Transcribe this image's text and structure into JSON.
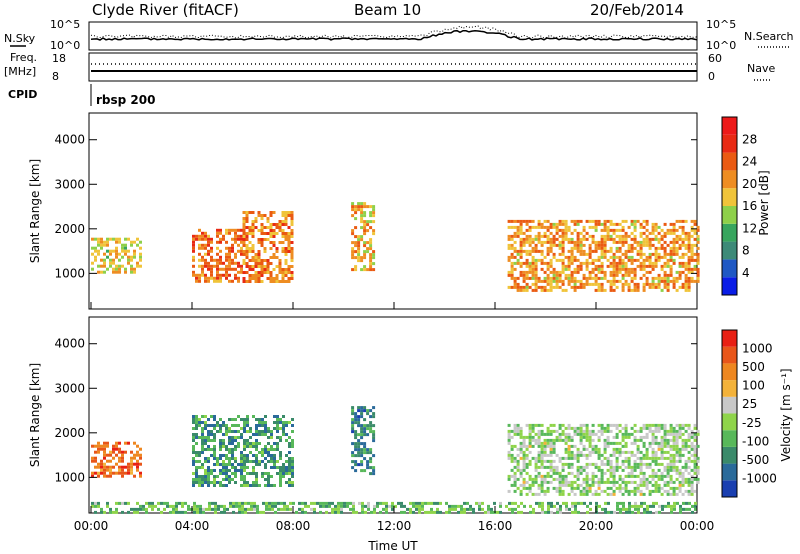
{
  "header": {
    "title": "Clyde River (fitACF)",
    "beam": "Beam 10",
    "date": "20/Feb/2014"
  },
  "summary": {
    "nsky_label": "N.Sky",
    "nsky_ticks": [
      "10^5",
      "10^0"
    ],
    "nsearch_label": "N.Search",
    "nsearch_ticks": [
      "10^5",
      "10^0"
    ],
    "freq_label": "Freq.",
    "freq_unit": "[MHz]",
    "freq_ticks": [
      "18",
      "8"
    ],
    "nave_label": "Nave",
    "nave_ticks": [
      "60",
      "0"
    ],
    "cpid_label": "CPID",
    "cpid_value": "rbsp 200"
  },
  "chart_data": [
    {
      "type": "heatmap",
      "parameter": "Power",
      "ylabel": "Slant Range [km]",
      "y_ticks": [
        "1000",
        "2000",
        "3000",
        "4000"
      ],
      "ylim": [
        200,
        4600
      ],
      "xlim_hours": [
        0,
        24
      ],
      "colorbar_label": "Power [dB]",
      "colorbar_ticks": [
        "28",
        "24",
        "20",
        "16",
        "12",
        "8",
        "4"
      ],
      "colorbar_colors": [
        "#0a1de6",
        "#1f58c4",
        "#3d8a78",
        "#37a55e",
        "#8ed04a",
        "#f0c43a",
        "#ee8d22",
        "#ea5a12",
        "#e82a14",
        "#ed1a1a"
      ],
      "echo_regions": [
        {
          "t0": 0.0,
          "t1": 2.0,
          "r0": 1000,
          "r1": 1800,
          "level": 0.55
        },
        {
          "t0": 4.0,
          "t1": 6.0,
          "r0": 800,
          "r1": 2000,
          "level": 0.75
        },
        {
          "t0": 6.0,
          "t1": 8.0,
          "r0": 800,
          "r1": 2400,
          "level": 0.7
        },
        {
          "t0": 10.3,
          "t1": 11.2,
          "r0": 1100,
          "r1": 2600,
          "level": 0.6
        },
        {
          "t0": 16.5,
          "t1": 24.0,
          "r0": 600,
          "r1": 2200,
          "level": 0.65
        }
      ]
    },
    {
      "type": "heatmap",
      "parameter": "Velocity",
      "ylabel": "Slant Range [km]",
      "y_ticks": [
        "1000",
        "2000",
        "3000",
        "4000"
      ],
      "ylim": [
        200,
        4600
      ],
      "xlim_hours": [
        0,
        24
      ],
      "colorbar_label": "Velocity [m s⁻¹]",
      "colorbar_ticks": [
        "1000",
        "500",
        "100",
        "25",
        "-25",
        "-100",
        "-500",
        "-1000"
      ],
      "colorbar_colors": [
        "#1a3fb0",
        "#2a6a9a",
        "#3a8a6a",
        "#58b85a",
        "#8fd44a",
        "#c8c8c8",
        "#f3b23a",
        "#ee8720",
        "#e8561a",
        "#e82014"
      ],
      "echo_regions": [
        {
          "t0": 0.0,
          "t1": 2.0,
          "r0": 1000,
          "r1": 1800,
          "level": 0.85
        },
        {
          "t0": 4.0,
          "t1": 8.0,
          "r0": 800,
          "r1": 2400,
          "level": 0.25
        },
        {
          "t0": 10.3,
          "t1": 11.2,
          "r0": 1100,
          "r1": 2600,
          "level": 0.2
        },
        {
          "t0": 16.5,
          "t1": 24.0,
          "r0": 600,
          "r1": 2200,
          "level": 0.45
        },
        {
          "t0": 0.0,
          "t1": 24.0,
          "r0": 200,
          "r1": 450,
          "level": 0.35
        }
      ]
    }
  ],
  "x_axis": {
    "ticks": [
      "00:00",
      "04:00",
      "08:00",
      "12:00",
      "16:00",
      "20:00",
      "00:00"
    ],
    "label": "Time UT"
  }
}
